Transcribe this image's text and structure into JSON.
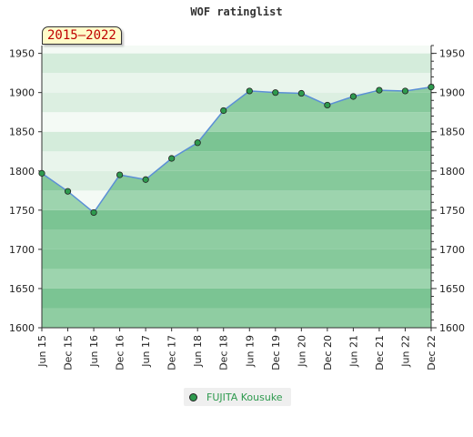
{
  "chart_data": {
    "type": "line",
    "title": "WOF ratinglist",
    "range_label": "2015–2022",
    "x": [
      "Jun 15",
      "Dec 15",
      "Jun 16",
      "Dec 16",
      "Jun 17",
      "Dec 17",
      "Jun 18",
      "Dec 18",
      "Jun 19",
      "Dec 19",
      "Jun 20",
      "Dec 20",
      "Jun 21",
      "Dec 21",
      "Jun 22",
      "Dec 22"
    ],
    "series": [
      {
        "name": "FUJITA Kousuke",
        "values": [
          1797,
          1774,
          1747,
          1795,
          1789,
          1816,
          1836,
          1877,
          1902,
          1900,
          1899,
          1884,
          1895,
          1903,
          1902,
          1907
        ],
        "color": "#2e9a4e",
        "line_color": "#5b8fd6"
      }
    ],
    "yticks": [
      1600,
      1650,
      1700,
      1750,
      1800,
      1850,
      1900,
      1950
    ],
    "ylim": [
      1600,
      1960
    ],
    "grid": true,
    "legend": "bottom-center"
  }
}
